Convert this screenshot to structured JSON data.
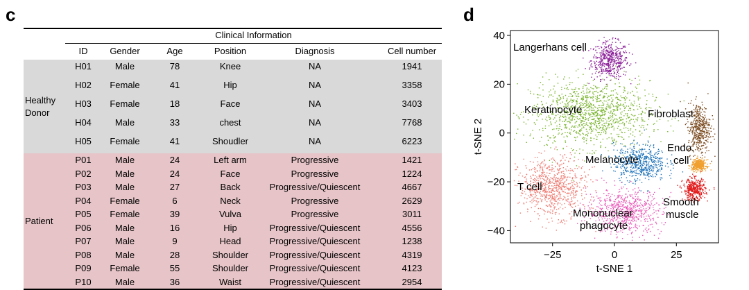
{
  "panels": {
    "left_label": "c",
    "right_label": "d"
  },
  "table": {
    "title": "Clinical Information",
    "columns": [
      "ID",
      "Gender",
      "Age",
      "Position",
      "Diagnosis",
      "Cell number"
    ],
    "groups": [
      {
        "name": "Healthy Donor",
        "rows": [
          [
            "H01",
            "Male",
            "78",
            "Knee",
            "NA",
            "1941"
          ],
          [
            "H02",
            "Female",
            "41",
            "Hip",
            "NA",
            "3358"
          ],
          [
            "H03",
            "Female",
            "18",
            "Face",
            "NA",
            "3403"
          ],
          [
            "H04",
            "Male",
            "33",
            "chest",
            "NA",
            "7768"
          ],
          [
            "H05",
            "Female",
            "41",
            "Shoudler",
            "NA",
            "6223"
          ]
        ],
        "color": "#d9d9d9"
      },
      {
        "name": "Patient",
        "rows": [
          [
            "P01",
            "Male",
            "24",
            "Left arm",
            "Progressive",
            "1421"
          ],
          [
            "P02",
            "Male",
            "24",
            "Face",
            "Progressive",
            "1224"
          ],
          [
            "P03",
            "Male",
            "27",
            "Back",
            "Progressive/Quiescent",
            "4667"
          ],
          [
            "P04",
            "Female",
            "6",
            "Neck",
            "Progressive",
            "2629"
          ],
          [
            "P05",
            "Female",
            "39",
            "Vulva",
            "Progressive",
            "3011"
          ],
          [
            "P06",
            "Male",
            "16",
            "Hip",
            "Progressive/Quiescent",
            "4556"
          ],
          [
            "P07",
            "Male",
            "9",
            "Head",
            "Progressive/Quiescent",
            "1238"
          ],
          [
            "P08",
            "Male",
            "28",
            "Shoulder",
            "Progressive/Quiescent",
            "4319"
          ],
          [
            "P09",
            "Female",
            "55",
            "Shoulder",
            "Progressive/Quiescent",
            "4123"
          ],
          [
            "P10",
            "Male",
            "36",
            "Waist",
            "Progressive/Quiescent",
            "2954"
          ]
        ],
        "color": "#e6c4c7"
      }
    ]
  },
  "chart_data": {
    "type": "scatter",
    "title": "",
    "xlabel": "t-SNE 1",
    "ylabel": "t-SNE 2",
    "xlim": [
      -42,
      42
    ],
    "ylim": [
      -45,
      42
    ],
    "xticks": [
      "−25",
      "0",
      "25"
    ],
    "yticks": [
      "−40",
      "−20",
      "0",
      "20",
      "40"
    ],
    "xtick_values": [
      -25,
      0,
      25
    ],
    "ytick_values": [
      -40,
      -20,
      0,
      20,
      40
    ],
    "grid": false,
    "clusters": [
      {
        "name": "Langerhans cell",
        "color": "#8b1f99",
        "center": [
          -2,
          30
        ],
        "spread": [
          5,
          5
        ]
      },
      {
        "name": "Keratinocyte",
        "color": "#7bb52f",
        "center": [
          -10,
          8
        ],
        "spread": [
          16,
          9
        ]
      },
      {
        "name": "Fibroblast",
        "color": "#7a4a1e",
        "center": [
          34,
          2
        ],
        "spread": [
          3,
          7
        ]
      },
      {
        "name": "Melanocyte",
        "color": "#1f72b8",
        "center": [
          10,
          -12
        ],
        "spread": [
          7,
          5
        ]
      },
      {
        "name": "Endo. cell",
        "color": "#f0a030",
        "center": [
          34,
          -13
        ],
        "spread": [
          2,
          1.5
        ]
      },
      {
        "name": "T cell",
        "color": "#ee7a70",
        "center": [
          -25,
          -22
        ],
        "spread": [
          9,
          8
        ]
      },
      {
        "name": "Mononuclear phagocyte",
        "color": "#e959b8",
        "center": [
          4,
          -32
        ],
        "spread": [
          10,
          6
        ]
      },
      {
        "name": "Smooth muscle",
        "color": "#e21b1b",
        "center": [
          32,
          -23
        ],
        "spread": [
          3,
          3
        ]
      }
    ]
  }
}
